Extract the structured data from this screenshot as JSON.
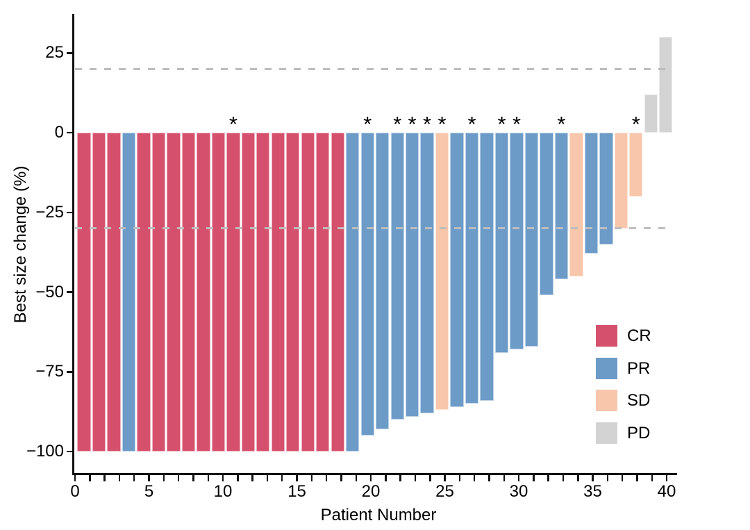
{
  "chart_data": {
    "type": "bar",
    "subtype": "waterfall",
    "title": "",
    "xlabel": "Patient Number",
    "ylabel": "Best size change (%)",
    "x_major_ticks": [
      0,
      5,
      10,
      15,
      20,
      25,
      30,
      35,
      40
    ],
    "x_minor_tick_step": 1,
    "xlim": [
      0,
      40.8
    ],
    "y_ticks": [
      {
        "value": 25,
        "label": "25"
      },
      {
        "value": 0,
        "label": "0"
      },
      {
        "value": -25,
        "label": "−25"
      },
      {
        "value": -50,
        "label": "−50"
      },
      {
        "value": -75,
        "label": "−75"
      },
      {
        "value": -100,
        "label": "−100"
      }
    ],
    "ylim": [
      -108,
      37
    ],
    "grid": false,
    "reference_lines": [
      {
        "y": 20,
        "style": "dashed",
        "color": "#bdbdbd"
      },
      {
        "y": -30,
        "style": "dashed",
        "color": "#bdbdbd"
      }
    ],
    "legend": {
      "position": "right-middle",
      "entries": [
        {
          "label": "CR",
          "color": "#d5506c"
        },
        {
          "label": "PR",
          "color": "#6d9bc8"
        },
        {
          "label": "SD",
          "color": "#f7c6ab"
        },
        {
          "label": "PD",
          "color": "#d3d3d3"
        }
      ]
    },
    "annotation_marker": "*",
    "patients": [
      {
        "n": 1,
        "value": -100,
        "response": "CR",
        "star": false
      },
      {
        "n": 2,
        "value": -100,
        "response": "CR",
        "star": false
      },
      {
        "n": 3,
        "value": -100,
        "response": "CR",
        "star": false
      },
      {
        "n": 4,
        "value": -100,
        "response": "PR",
        "star": false
      },
      {
        "n": 5,
        "value": -100,
        "response": "CR",
        "star": false
      },
      {
        "n": 6,
        "value": -100,
        "response": "CR",
        "star": false
      },
      {
        "n": 7,
        "value": -100,
        "response": "CR",
        "star": false
      },
      {
        "n": 8,
        "value": -100,
        "response": "CR",
        "star": false
      },
      {
        "n": 9,
        "value": -100,
        "response": "CR",
        "star": false
      },
      {
        "n": 10,
        "value": -100,
        "response": "CR",
        "star": false
      },
      {
        "n": 11,
        "value": -100,
        "response": "CR",
        "star": true
      },
      {
        "n": 12,
        "value": -100,
        "response": "CR",
        "star": false
      },
      {
        "n": 13,
        "value": -100,
        "response": "CR",
        "star": false
      },
      {
        "n": 14,
        "value": -100,
        "response": "CR",
        "star": false
      },
      {
        "n": 15,
        "value": -100,
        "response": "CR",
        "star": false
      },
      {
        "n": 16,
        "value": -100,
        "response": "CR",
        "star": false
      },
      {
        "n": 17,
        "value": -100,
        "response": "CR",
        "star": false
      },
      {
        "n": 18,
        "value": -100,
        "response": "CR",
        "star": false
      },
      {
        "n": 19,
        "value": -100,
        "response": "PR",
        "star": false
      },
      {
        "n": 20,
        "value": -95,
        "response": "PR",
        "star": true
      },
      {
        "n": 21,
        "value": -93,
        "response": "PR",
        "star": false
      },
      {
        "n": 22,
        "value": -90,
        "response": "PR",
        "star": true
      },
      {
        "n": 23,
        "value": -89,
        "response": "PR",
        "star": true
      },
      {
        "n": 24,
        "value": -88,
        "response": "PR",
        "star": true
      },
      {
        "n": 25,
        "value": -87,
        "response": "SD",
        "star": true
      },
      {
        "n": 26,
        "value": -86,
        "response": "PR",
        "star": false
      },
      {
        "n": 27,
        "value": -85,
        "response": "PR",
        "star": true
      },
      {
        "n": 28,
        "value": -84,
        "response": "PR",
        "star": false
      },
      {
        "n": 29,
        "value": -69,
        "response": "PR",
        "star": true
      },
      {
        "n": 30,
        "value": -68,
        "response": "PR",
        "star": true
      },
      {
        "n": 31,
        "value": -67,
        "response": "PR",
        "star": false
      },
      {
        "n": 32,
        "value": -51,
        "response": "PR",
        "star": false
      },
      {
        "n": 33,
        "value": -46,
        "response": "PR",
        "star": true
      },
      {
        "n": 34,
        "value": -45,
        "response": "SD",
        "star": false
      },
      {
        "n": 35,
        "value": -38,
        "response": "PR",
        "star": false
      },
      {
        "n": 36,
        "value": -35,
        "response": "PR",
        "star": false
      },
      {
        "n": 37,
        "value": -30,
        "response": "SD",
        "star": false
      },
      {
        "n": 38,
        "value": -20,
        "response": "SD",
        "star": true
      },
      {
        "n": 39,
        "value": 12,
        "response": "PD",
        "star": false
      },
      {
        "n": 40,
        "value": 30,
        "response": "PD",
        "star": false
      }
    ]
  }
}
